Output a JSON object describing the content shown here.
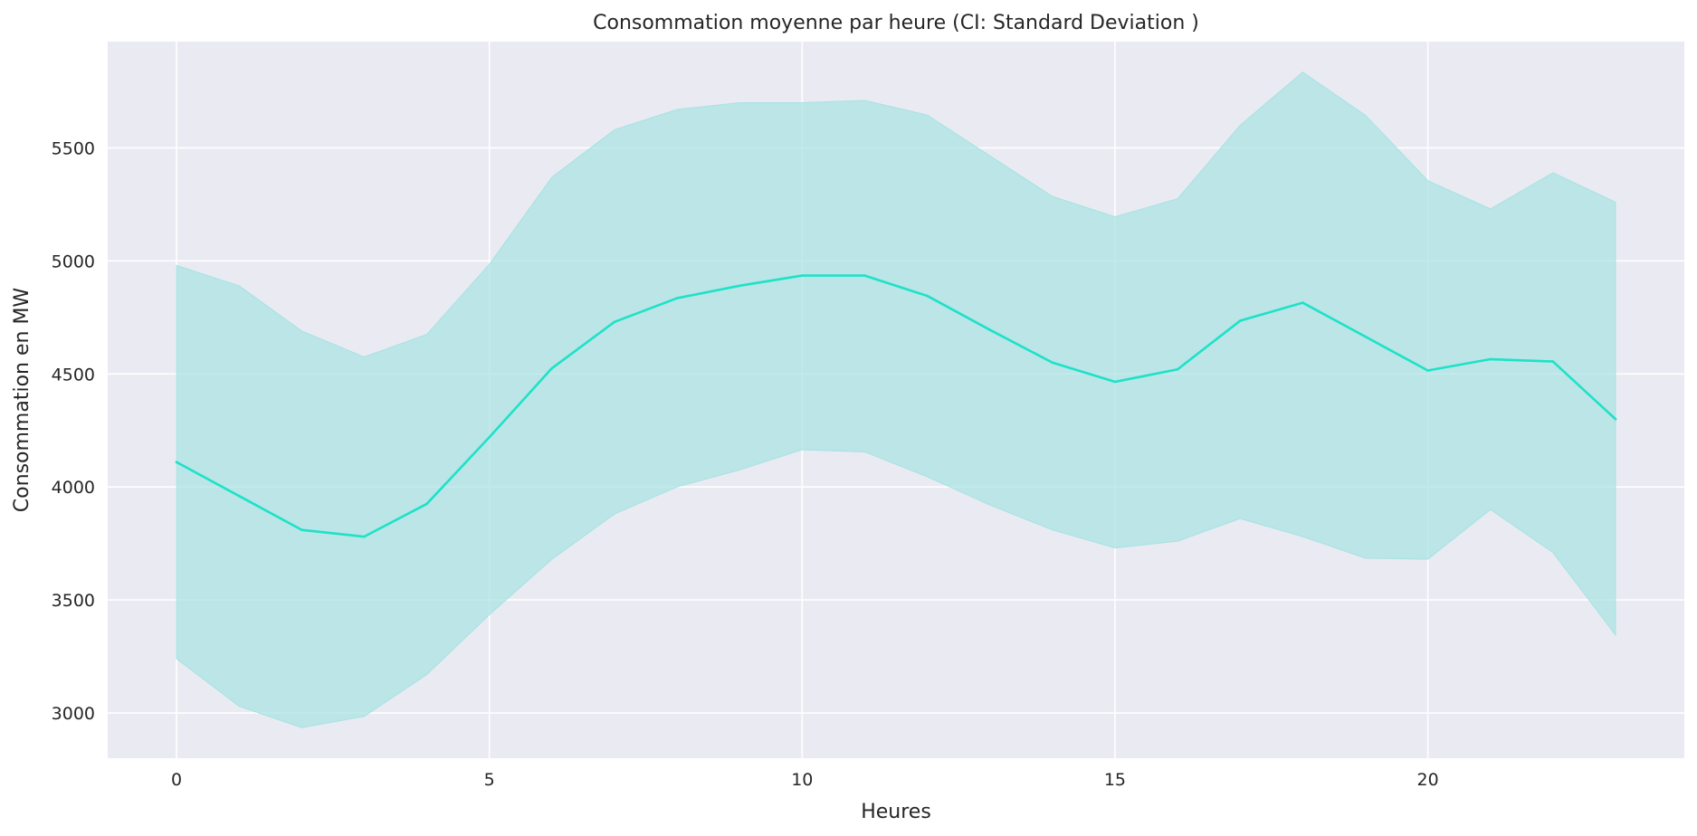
{
  "chart_data": {
    "type": "line",
    "title": "Consommation moyenne par heure (CI: Standard Deviation )",
    "xlabel": "Heures",
    "ylabel": "Consommation en MW",
    "xlim": [
      -1.1,
      24.1
    ],
    "ylim": [
      2800,
      5970
    ],
    "xticks": [
      0,
      5,
      10,
      15,
      20
    ],
    "yticks": [
      3000,
      3500,
      4000,
      4500,
      5000,
      5500
    ],
    "grid": true,
    "legend": "none",
    "colors": {
      "line": "#1de2c8",
      "band": "#a6e3e3",
      "background": "#eaeaf2",
      "grid": "#ffffff"
    },
    "x": [
      0,
      1,
      2,
      3,
      4,
      5,
      6,
      7,
      8,
      9,
      10,
      11,
      12,
      13,
      14,
      15,
      16,
      17,
      18,
      19,
      20,
      21,
      22,
      23
    ],
    "series": [
      {
        "values": [
          4110,
          3960,
          3810,
          3780,
          3925,
          4220,
          4525,
          4730,
          4835,
          4890,
          4935,
          4935,
          4845,
          4695,
          4550,
          4465,
          4520,
          4735,
          4815,
          4665,
          4515,
          4565,
          4555,
          4300
        ],
        "upper": [
          4980,
          4890,
          4690,
          4575,
          4675,
          4985,
          5370,
          5580,
          5670,
          5700,
          5700,
          5710,
          5645,
          5465,
          5285,
          5195,
          5275,
          5600,
          5835,
          5645,
          5355,
          5230,
          5390,
          5260
        ],
        "lower": [
          3240,
          3030,
          2935,
          2985,
          3170,
          3435,
          3680,
          3880,
          4000,
          4075,
          4165,
          4155,
          4045,
          3920,
          3810,
          3730,
          3760,
          3860,
          3780,
          3685,
          3680,
          3900,
          3710,
          3345
        ]
      }
    ]
  }
}
